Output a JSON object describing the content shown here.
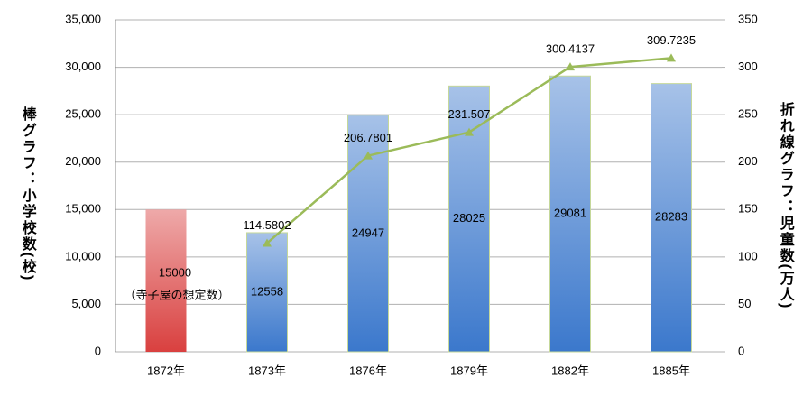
{
  "chart_data": {
    "type": "bar",
    "categories": [
      "1872年",
      "1873年",
      "1876年",
      "1879年",
      "1882年",
      "1885年"
    ],
    "y_label": "棒グラフ：小学校数(校)",
    "y2_label": "折れ線グラフ：児童数(万人)",
    "annotation": "（寺子屋の想定数）",
    "series": [
      {
        "type": "bar",
        "colors": [
          "#d9403f",
          "#3b78cc",
          "#3b78cc",
          "#3b78cc",
          "#3b78cc",
          "#3b78cc"
        ],
        "values": [
          15000,
          12558,
          24947,
          28025,
          29081,
          28283
        ]
      },
      {
        "type": "line",
        "axis": "y2",
        "color": "#9bbb59",
        "values": [
          null,
          114.5802,
          206.7801,
          231.507,
          300.4137,
          309.7235
        ]
      }
    ],
    "ylim": [
      0,
      35000
    ],
    "yticks": [
      0,
      {
        "value": 5000,
        "label": "5,000"
      },
      {
        "value": 10000,
        "label": "10,000"
      },
      {
        "value": 15000,
        "label": "15,000"
      },
      {
        "value": 20000,
        "label": "20,000"
      },
      {
        "value": 25000,
        "label": "25,000"
      },
      {
        "value": 30000,
        "label": "30,000"
      },
      {
        "value": 35000,
        "label": "35,000"
      }
    ],
    "y2lim": [
      0,
      350
    ],
    "y2ticks": [
      0,
      50,
      100,
      150,
      200,
      250,
      300,
      350
    ],
    "grid": true
  }
}
